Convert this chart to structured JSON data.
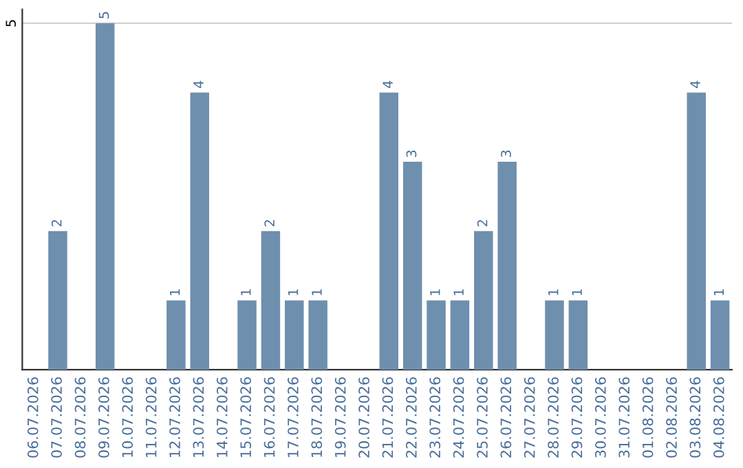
{
  "chart_data": {
    "type": "bar",
    "categories": [
      "06.07.2026",
      "07.07.2026",
      "08.07.2026",
      "09.07.2026",
      "10.07.2026",
      "11.07.2026",
      "12.07.2026",
      "13.07.2026",
      "14.07.2026",
      "15.07.2026",
      "16.07.2026",
      "17.07.2026",
      "18.07.2026",
      "19.07.2026",
      "20.07.2026",
      "21.07.2026",
      "22.07.2026",
      "23.07.2026",
      "24.07.2026",
      "25.07.2026",
      "26.07.2026",
      "27.07.2026",
      "28.07.2026",
      "29.07.2026",
      "30.07.2026",
      "31.07.2026",
      "01.08.2026",
      "02.08.2026",
      "03.08.2026",
      "04.08.2026"
    ],
    "values": [
      0,
      2,
      0,
      5,
      0,
      0,
      1,
      4,
      0,
      1,
      2,
      1,
      1,
      0,
      0,
      4,
      3,
      1,
      1,
      2,
      3,
      0,
      1,
      1,
      0,
      0,
      0,
      0,
      4,
      1
    ],
    "value_labels": [
      null,
      "2",
      null,
      "5",
      null,
      null,
      "1",
      "4",
      null,
      "1",
      "2",
      "1",
      "1",
      null,
      null,
      "4",
      "3",
      "1",
      "1",
      "2",
      "3",
      null,
      "1",
      "1",
      null,
      null,
      null,
      null,
      "4",
      "1"
    ],
    "color": "#6f8fae",
    "ylim": [
      0,
      5.2
    ],
    "yticks": [
      5
    ],
    "grid": "y",
    "legend": false
  }
}
